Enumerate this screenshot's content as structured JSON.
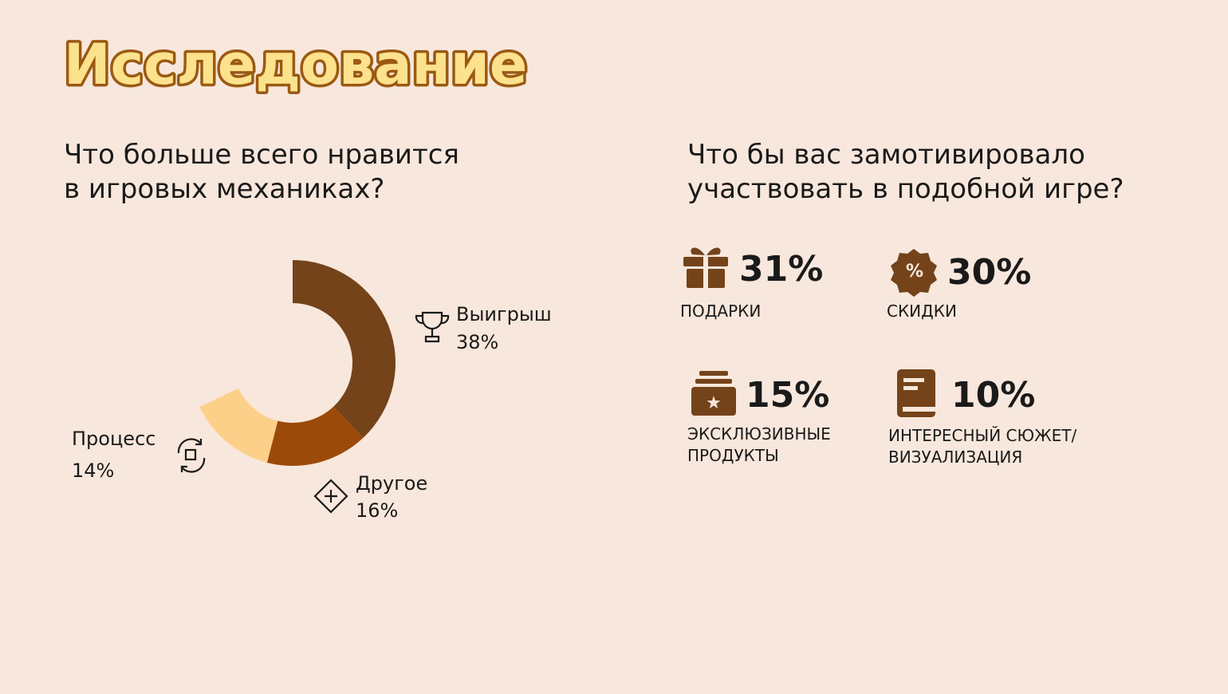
{
  "title": "Исследование",
  "chart_data": {
    "type": "donut",
    "title": [
      "Что больше всего нравится",
      "в игровых механиках?"
    ],
    "categories": [
      "Выигрыш",
      "Другое",
      "Процесс"
    ],
    "values": [
      38,
      16,
      14
    ],
    "value_labels": [
      "38%",
      "16%",
      "14%"
    ],
    "colors": [
      "#74431a",
      "#9c4a0a",
      "#fdd08a"
    ]
  },
  "question2": [
    "Что бы вас замотивировало",
    "участвовать в подобной игре?"
  ],
  "stats": [
    {
      "value": "31%",
      "label": [
        "ПОДАРКИ"
      ]
    },
    {
      "value": "30%",
      "label": [
        "СКИДКИ"
      ]
    },
    {
      "value": "15%",
      "label": [
        "ЭКСКЛЮЗИВНЫЕ",
        "ПРОДУКТЫ"
      ]
    },
    {
      "value": "10%",
      "label": [
        "ИНТЕРЕСНЫЙ СЮЖЕТ/",
        "ВИЗУАЛИЗАЦИЯ"
      ]
    }
  ]
}
